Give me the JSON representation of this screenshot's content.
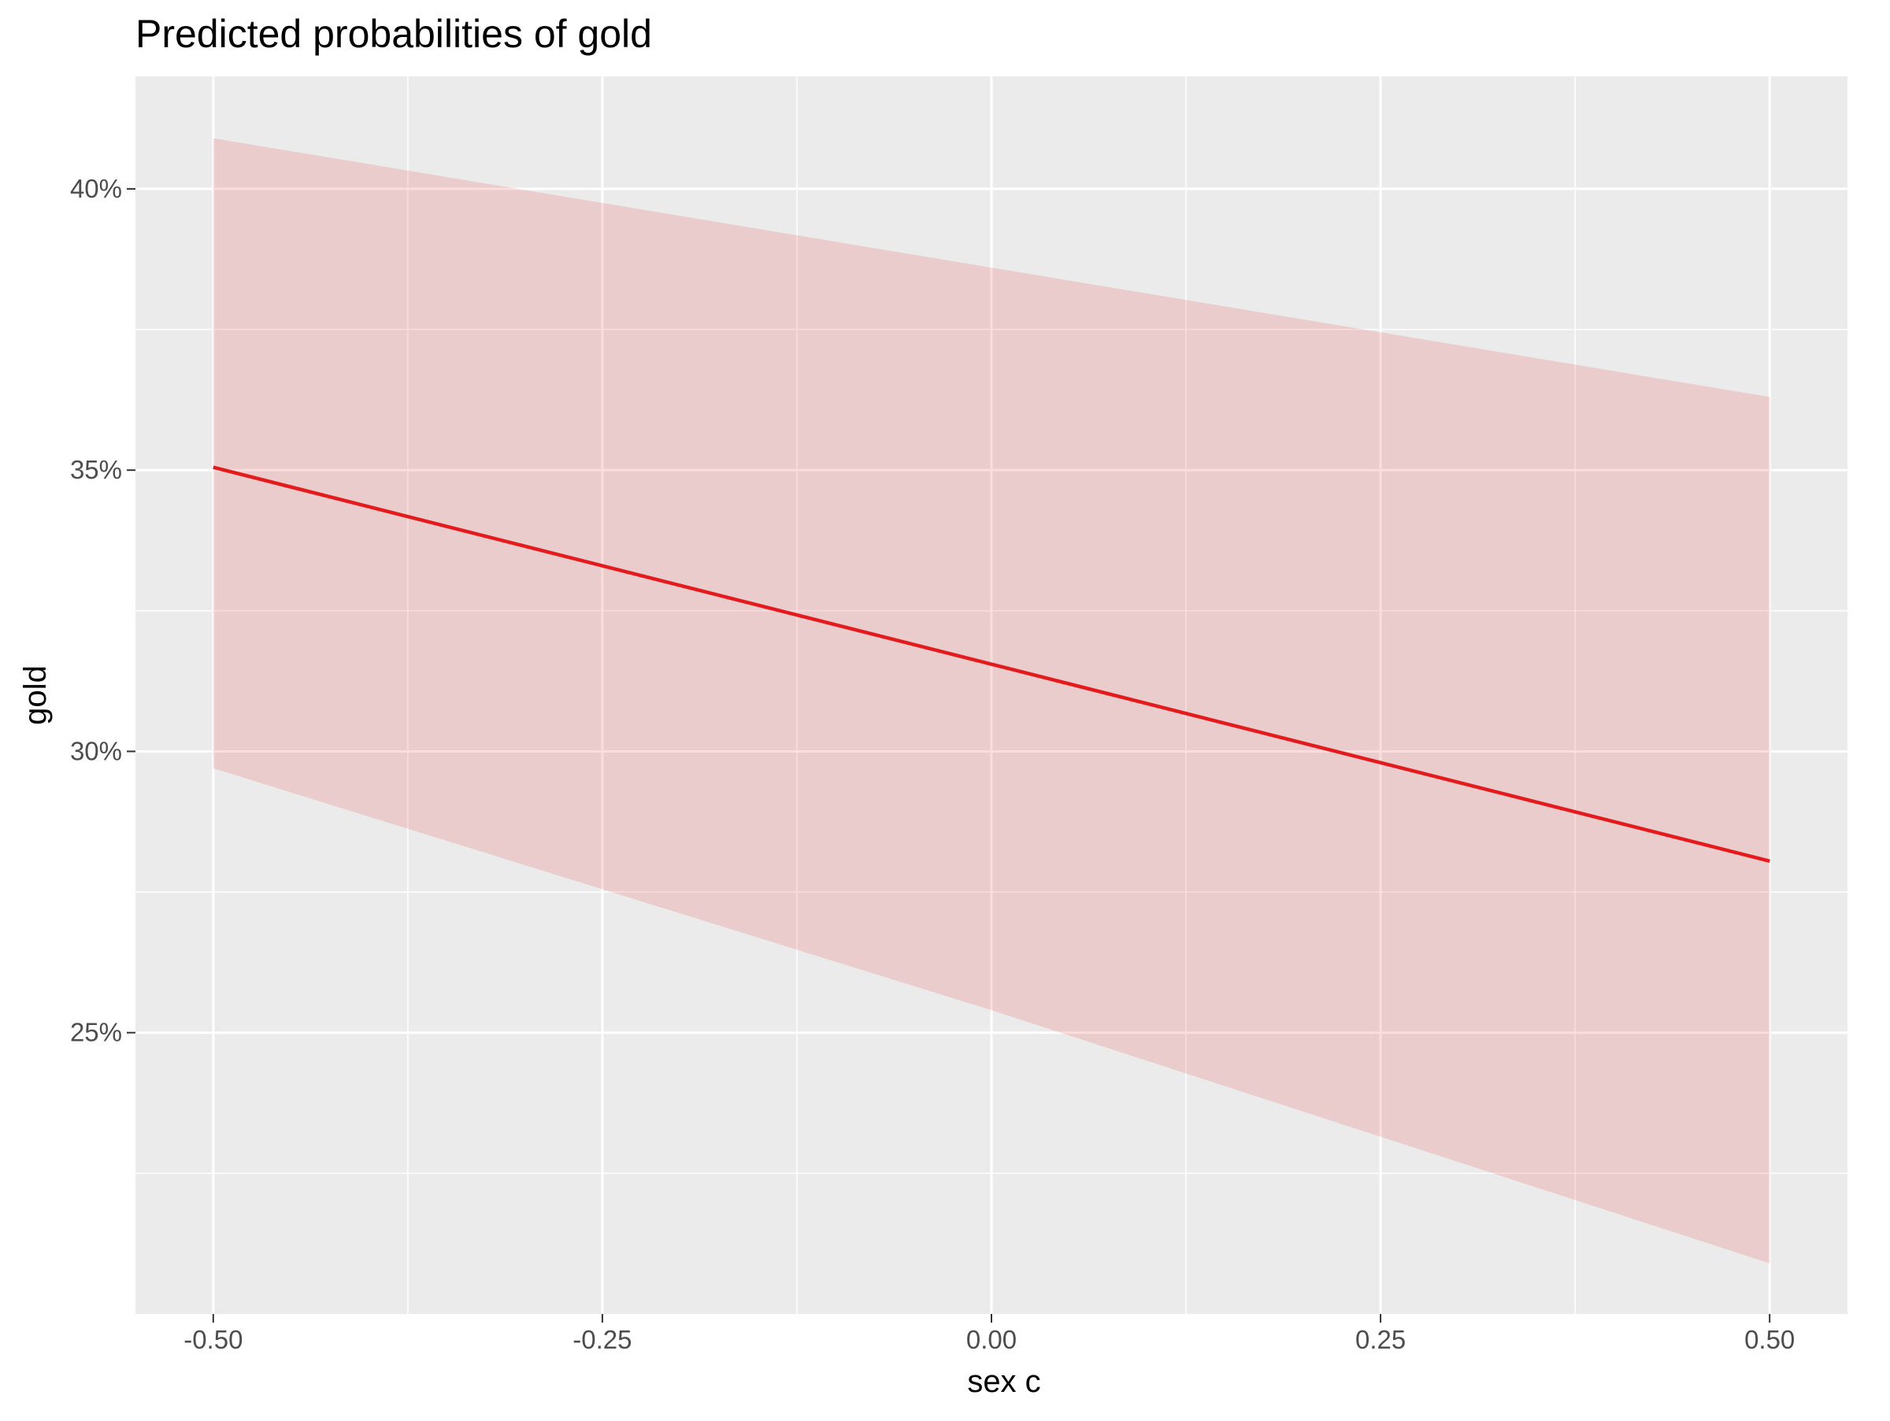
{
  "chart_data": {
    "type": "line",
    "title": "Predicted probabilities of gold",
    "xlabel": "sex c",
    "ylabel": "gold",
    "x_ticks": [
      "-0.50",
      "-0.25",
      "0.00",
      "0.25",
      "0.50"
    ],
    "y_ticks": [
      "25%",
      "30%",
      "35%",
      "40%"
    ],
    "xlim": [
      -0.55,
      0.55
    ],
    "ylim": [
      0.2,
      0.42
    ],
    "grid": true,
    "series": [
      {
        "x": [
          -0.5,
          0.0,
          0.5
        ],
        "y": [
          0.3505,
          0.3155,
          0.2805
        ],
        "ci_low": [
          0.297,
          0.254,
          0.209
        ],
        "ci_high": [
          0.409,
          0.386,
          0.363
        ]
      }
    ],
    "colors": {
      "line": "#e41a1c",
      "ribbon": "#e41a1c",
      "panel": "#ebebeb",
      "grid": "#ffffff",
      "tick_text": "#4d4d4d"
    }
  }
}
